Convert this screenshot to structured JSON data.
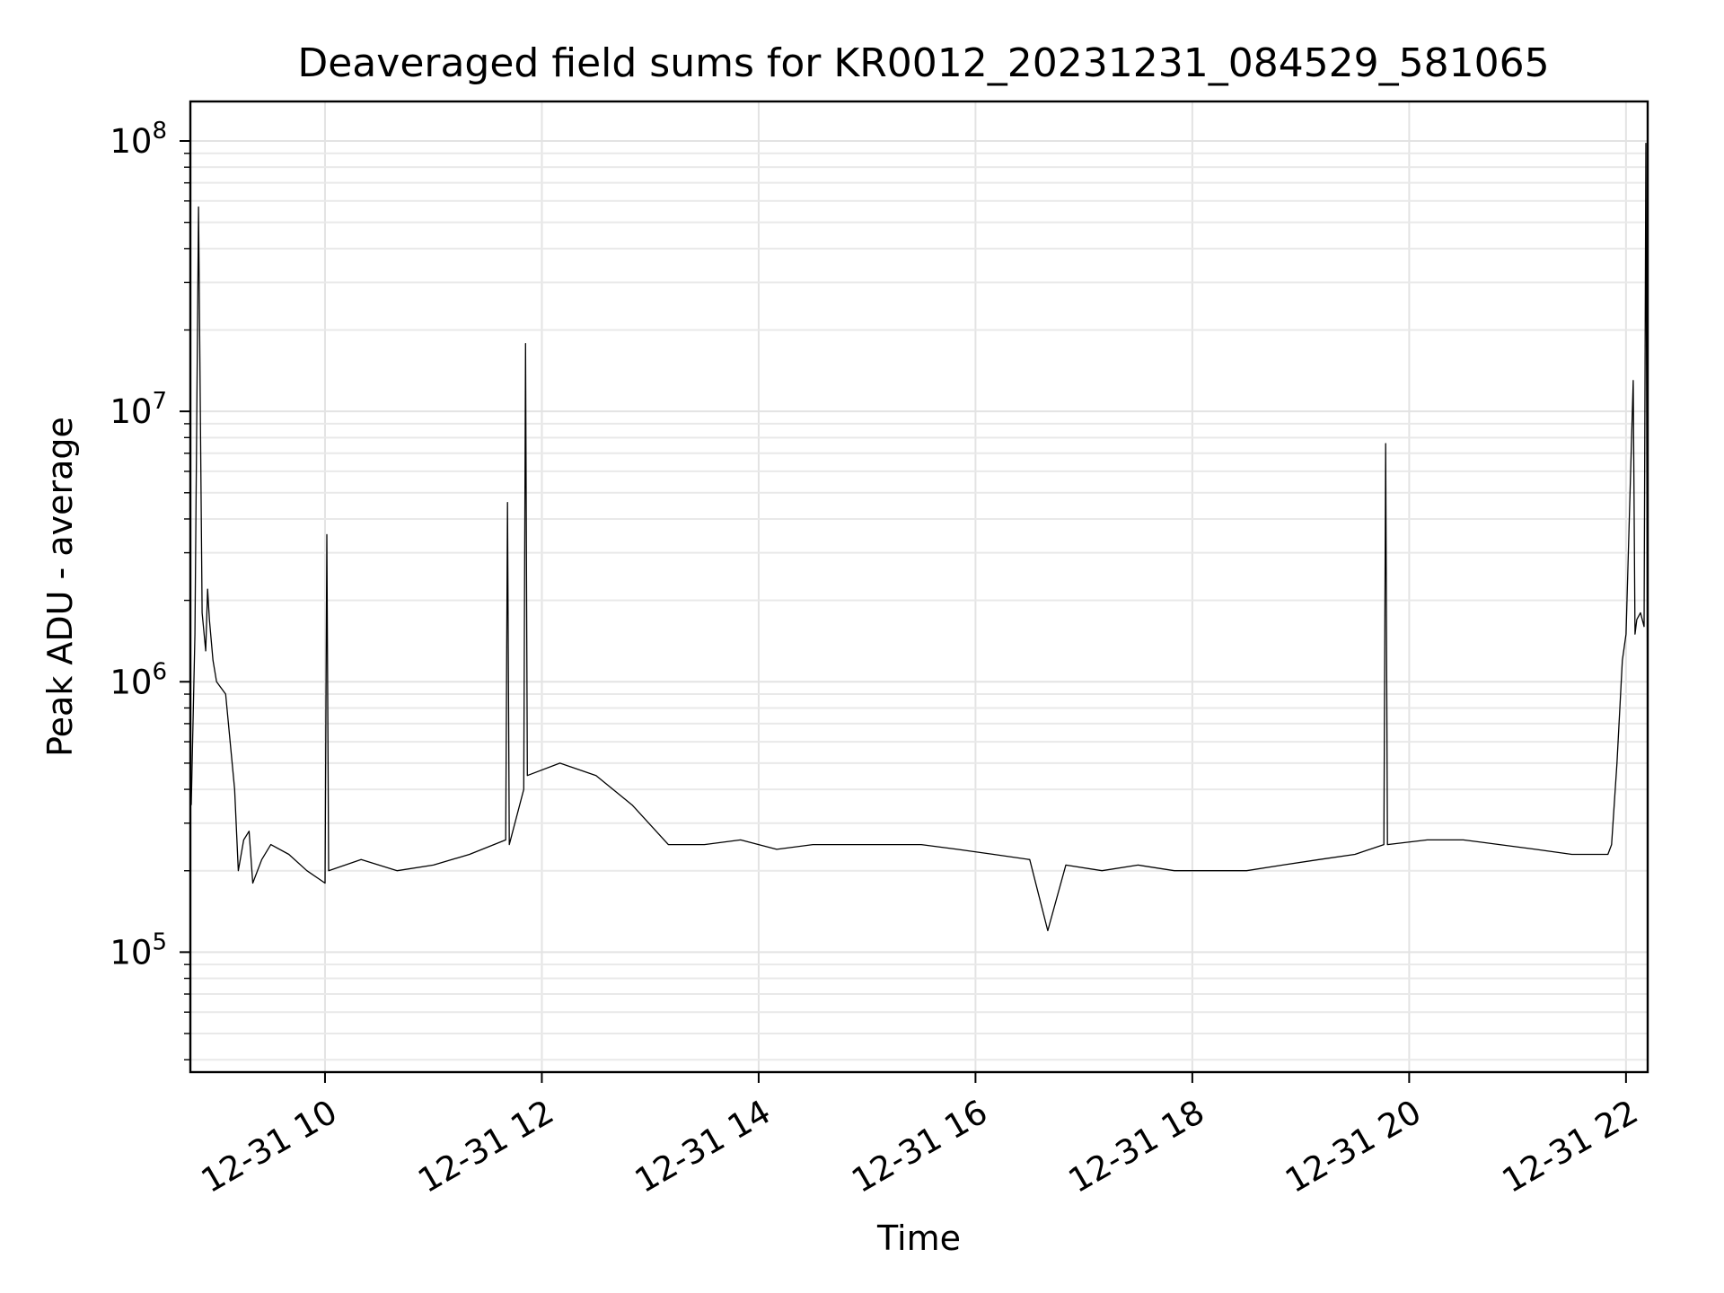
{
  "chart_data": {
    "type": "line",
    "title": "Deaveraged field sums for KR0012_20231231_084529_581065",
    "xlabel": "Time",
    "ylabel": "Peak ADU - average",
    "y_scale": "log",
    "ylim": [
      36000,
      140000000
    ],
    "xlim": [
      "2023-12-31T08:45:29",
      "2023-12-31T22:12:00"
    ],
    "grid": true,
    "legend": "none",
    "line_color": "#000000",
    "x_ticks": [
      "12-31 10",
      "12-31 12",
      "12-31 14",
      "12-31 16",
      "12-31 18",
      "12-31 20",
      "12-31 22"
    ],
    "x_tick_values": [
      "2023-12-31T10:00",
      "2023-12-31T12:00",
      "2023-12-31T14:00",
      "2023-12-31T16:00",
      "2023-12-31T18:00",
      "2023-12-31T20:00",
      "2023-12-31T22:00"
    ],
    "y_ticks": [
      {
        "base": "10",
        "exp": "5",
        "value": 100000
      },
      {
        "base": "10",
        "exp": "6",
        "value": 1000000
      },
      {
        "base": "10",
        "exp": "7",
        "value": 10000000
      },
      {
        "base": "10",
        "exp": "8",
        "value": 100000000
      }
    ],
    "series": [
      {
        "x": [
          "2023-12-31T08:46",
          "2023-12-31T08:48",
          "2023-12-31T08:50",
          "2023-12-31T08:52",
          "2023-12-31T08:54",
          "2023-12-31T08:55",
          "2023-12-31T08:56",
          "2023-12-31T08:58",
          "2023-12-31T09:00",
          "2023-12-31T09:05",
          "2023-12-31T09:10",
          "2023-12-31T09:12",
          "2023-12-31T09:15",
          "2023-12-31T09:18",
          "2023-12-31T09:20",
          "2023-12-31T09:25",
          "2023-12-31T09:30",
          "2023-12-31T09:40",
          "2023-12-31T09:50",
          "2023-12-31T10:00",
          "2023-12-31T10:01",
          "2023-12-31T10:02",
          "2023-12-31T10:20",
          "2023-12-31T10:40",
          "2023-12-31T11:00",
          "2023-12-31T11:20",
          "2023-12-31T11:40",
          "2023-12-31T11:41",
          "2023-12-31T11:42",
          "2023-12-31T11:50",
          "2023-12-31T11:51",
          "2023-12-31T11:52",
          "2023-12-31T12:10",
          "2023-12-31T12:30",
          "2023-12-31T12:50",
          "2023-12-31T13:10",
          "2023-12-31T13:30",
          "2023-12-31T13:50",
          "2023-12-31T14:10",
          "2023-12-31T14:30",
          "2023-12-31T14:50",
          "2023-12-31T15:10",
          "2023-12-31T15:30",
          "2023-12-31T15:50",
          "2023-12-31T16:10",
          "2023-12-31T16:30",
          "2023-12-31T16:40",
          "2023-12-31T16:50",
          "2023-12-31T17:10",
          "2023-12-31T17:30",
          "2023-12-31T17:50",
          "2023-12-31T18:10",
          "2023-12-31T18:30",
          "2023-12-31T18:50",
          "2023-12-31T19:10",
          "2023-12-31T19:30",
          "2023-12-31T19:46",
          "2023-12-31T19:47",
          "2023-12-31T19:48",
          "2023-12-31T20:10",
          "2023-12-31T20:30",
          "2023-12-31T20:50",
          "2023-12-31T21:10",
          "2023-12-31T21:30",
          "2023-12-31T21:50",
          "2023-12-31T21:52",
          "2023-12-31T21:55",
          "2023-12-31T21:58",
          "2023-12-31T22:00",
          "2023-12-31T22:04",
          "2023-12-31T22:05",
          "2023-12-31T22:06",
          "2023-12-31T22:08",
          "2023-12-31T22:10",
          "2023-12-31T22:11",
          "2023-12-31T22:12"
        ],
        "y": [
          350000,
          1500000,
          57000000,
          1800000,
          1300000,
          2200000,
          1700000,
          1200000,
          1000000,
          900000,
          400000,
          200000,
          260000,
          280000,
          180000,
          220000,
          250000,
          230000,
          200000,
          180000,
          3500000,
          200000,
          220000,
          200000,
          210000,
          230000,
          260000,
          4600000,
          250000,
          400000,
          17800000,
          450000,
          500000,
          450000,
          350000,
          250000,
          250000,
          260000,
          240000,
          250000,
          250000,
          250000,
          250000,
          240000,
          230000,
          220000,
          120000,
          210000,
          200000,
          210000,
          200000,
          200000,
          200000,
          210000,
          220000,
          230000,
          250000,
          7600000,
          250000,
          260000,
          260000,
          250000,
          240000,
          230000,
          230000,
          250000,
          500000,
          1200000,
          1500000,
          13000000,
          1500000,
          1700000,
          1800000,
          1600000,
          98000000,
          500000
        ]
      }
    ]
  }
}
